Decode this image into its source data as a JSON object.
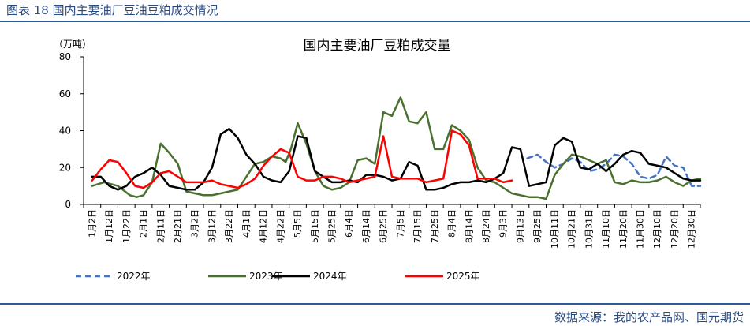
{
  "caption": "图表 18 国内主要油厂豆油豆粕成交情况",
  "source": "数据来源：我的农产品网、国元期货",
  "chart_data": {
    "type": "line",
    "title": "国内主要油厂豆粕成交量",
    "unit_label": "（万吨）",
    "xlabel": "",
    "ylabel": "",
    "ylim": [
      0,
      80
    ],
    "yticks": [
      0,
      20,
      40,
      60,
      80
    ],
    "grid": false,
    "legend_position": "bottom",
    "categories": [
      "1月2日",
      "1月12日",
      "1月22日",
      "2月1日",
      "2月11日",
      "2月21日",
      "3月2日",
      "3月12日",
      "3月22日",
      "4月1日",
      "4月12日",
      "4月22日",
      "5月5日",
      "5月15日",
      "5月25日",
      "6月4日",
      "6月14日",
      "6月25日",
      "7月5日",
      "7月15日",
      "7月25日",
      "8月4日",
      "8月14日",
      "8月24日",
      "9月3日",
      "9月13日",
      "9月25日",
      "10月11日",
      "10月21日",
      "10月31日",
      "11月10日",
      "11月20日",
      "11月30日",
      "12月10日",
      "12月20日",
      "12月30日"
    ],
    "colors": {
      "2022": "#4472c4",
      "2023": "#4a7030",
      "2024": "#000000",
      "2025": "#ff0000"
    },
    "series": [
      {
        "name": "2022年",
        "style": "dashed",
        "x": [
          25.4,
          26,
          26.5,
          27,
          27.5,
          28,
          28.5,
          29,
          29.5,
          30,
          30.5,
          31,
          31.5,
          32,
          32.5,
          33,
          33.5,
          34,
          34.5,
          35,
          35.5
        ],
        "values": [
          25,
          27,
          23,
          20,
          22,
          25,
          23,
          18,
          19,
          22,
          27,
          26,
          22,
          15,
          14,
          16,
          26,
          21,
          20,
          10,
          10
        ]
      },
      {
        "name": "2023年",
        "style": "solid",
        "x": [
          0,
          0.7,
          1.5,
          2.2,
          2.6,
          3,
          3.5,
          4,
          4.5,
          5,
          5.5,
          6,
          6.5,
          7,
          7.5,
          8,
          8.5,
          9,
          9.5,
          10,
          10.5,
          11,
          11.3,
          11.6,
          12,
          12.5,
          13,
          13.5,
          14,
          14.5,
          15,
          15.5,
          16,
          16.5,
          17,
          17.5,
          18,
          18.5,
          19,
          19.5,
          20,
          20.5,
          21,
          21.5,
          22,
          22.5,
          23,
          23.5,
          24,
          24.5,
          25,
          25.5,
          26,
          26.5,
          27,
          27.5,
          28,
          28.5,
          29,
          29.5,
          30,
          30.5,
          31,
          31.5,
          32,
          32.5,
          33,
          33.5,
          34,
          34.5,
          35,
          35.5
        ],
        "values": [
          10,
          12,
          10,
          5,
          4,
          5,
          12,
          33,
          28,
          22,
          7,
          6,
          5,
          5,
          6,
          7,
          8,
          15,
          22,
          23,
          26,
          25,
          23,
          30,
          44,
          33,
          18,
          10,
          8,
          9,
          12,
          24,
          25,
          22,
          50,
          48,
          58,
          45,
          44,
          50,
          30,
          30,
          43,
          40,
          35,
          20,
          13,
          12,
          9,
          6,
          5,
          4,
          4,
          3,
          16,
          22,
          27,
          26,
          24,
          22,
          24,
          12,
          11,
          13,
          12,
          12,
          13,
          15,
          12,
          10,
          13,
          14
        ]
      },
      {
        "name": "2024年",
        "style": "solid",
        "x": [
          0,
          0.5,
          1,
          1.5,
          2,
          2.5,
          3,
          3.5,
          4,
          4.5,
          5,
          5.5,
          6,
          6.5,
          7,
          7.5,
          8,
          8.5,
          9,
          9.5,
          10,
          10.5,
          11,
          11.5,
          12,
          12.5,
          13,
          13.5,
          14,
          14.5,
          15,
          15.5,
          16,
          16.5,
          17,
          17.5,
          18,
          18.5,
          19,
          19.5,
          20,
          20.5,
          21,
          21.5,
          22,
          22.5,
          23,
          23.5,
          24,
          24.5,
          25,
          25.5,
          26,
          26.5,
          27,
          27.5,
          28,
          28.5,
          29,
          29.5,
          30,
          30.5,
          31,
          31.5,
          32,
          32.5,
          33,
          33.5,
          34,
          34.5,
          35,
          35.5
        ],
        "values": [
          15,
          15,
          10,
          8,
          10,
          15,
          17,
          20,
          16,
          10,
          9,
          8,
          8,
          12,
          20,
          38,
          41,
          36,
          27,
          22,
          15,
          13,
          12,
          18,
          37,
          36,
          18,
          15,
          12,
          12,
          13,
          12,
          16,
          16,
          15,
          13,
          14,
          23,
          21,
          8,
          8,
          9,
          11,
          12,
          12,
          13,
          12,
          14,
          17,
          31,
          30,
          10,
          11,
          12,
          32,
          36,
          34,
          20,
          19,
          22,
          18,
          22,
          27,
          29,
          28,
          22,
          21,
          20,
          17,
          14,
          13,
          13
        ]
      },
      {
        "name": "2025年",
        "style": "solid",
        "x": [
          0,
          0.5,
          1,
          1.5,
          2,
          2.5,
          3,
          3.5,
          4,
          4.5,
          5,
          5.5,
          6,
          6.5,
          7,
          7.5,
          8,
          8.5,
          9,
          9.5,
          10,
          10.5,
          11,
          11.5,
          12,
          12.5,
          13,
          13.5,
          14,
          14.5,
          15,
          15.5,
          16,
          16.5,
          17,
          17.5,
          18,
          18.5,
          19,
          19.5,
          20,
          20.5,
          21,
          21.5,
          22,
          22.5,
          23,
          23.5,
          24,
          24.5
        ],
        "values": [
          13,
          19,
          24,
          23,
          17,
          10,
          9,
          12,
          17,
          18,
          15,
          12,
          12,
          12,
          13,
          11,
          10,
          9,
          11,
          14,
          21,
          26,
          30,
          28,
          15,
          13,
          13,
          15,
          15,
          14,
          12,
          13,
          14,
          15,
          37,
          15,
          14,
          14,
          14,
          12,
          13,
          14,
          40,
          38,
          32,
          14,
          14,
          14,
          12,
          13
        ]
      }
    ]
  }
}
